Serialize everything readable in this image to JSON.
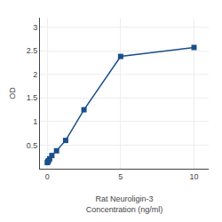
{
  "chart_data": {
    "type": "line",
    "x": [
      0.0,
      0.04,
      0.08,
      0.16,
      0.31,
      0.63,
      1.25,
      2.5,
      5.0,
      10.0
    ],
    "values": [
      0.13,
      0.15,
      0.17,
      0.21,
      0.28,
      0.38,
      0.6,
      1.25,
      2.38,
      2.57
    ],
    "xlabel": "Rat Neuroligin-3\nConcentration (ng/ml)",
    "ylabel": "OD",
    "xlim": [
      -0.5,
      11
    ],
    "ylim": [
      0,
      3.2
    ],
    "xticks": [
      0,
      5,
      10
    ],
    "yticks": [
      0.5,
      1.0,
      1.5,
      2.0,
      2.5,
      3.0
    ],
    "color": "#1a4f8a",
    "marker": "square",
    "grid": true
  }
}
